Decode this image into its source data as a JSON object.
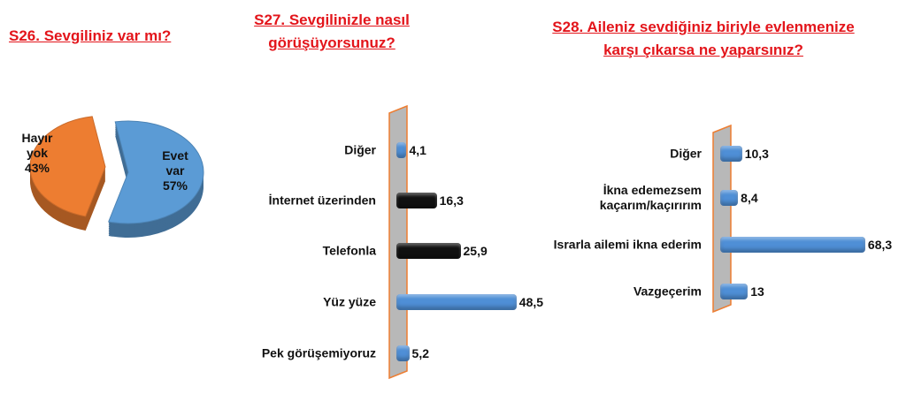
{
  "chart_data": [
    {
      "type": "pie",
      "title": "S26. Sevgiliniz var mı?",
      "categories": [
        "Evet var",
        "Hayır yok"
      ],
      "values": [
        57,
        43
      ],
      "value_labels": [
        "57%",
        "43%"
      ],
      "colors": [
        "#5b9bd5",
        "#ed7d31"
      ]
    },
    {
      "type": "hbar",
      "title": "S27. Sevgilinizle nasıl görüşüyorsunuz?",
      "categories": [
        "Diğer",
        "İnternet üzerinden",
        "Telefonla",
        "Yüz yüze",
        "Pek görüşemiyoruz"
      ],
      "values": [
        4.1,
        16.3,
        25.9,
        48.5,
        5.2
      ],
      "value_labels": [
        "4,1",
        "16,3",
        "25,9",
        "48,5",
        "5,2"
      ],
      "colors": [
        "#4f8fd6",
        "#111111",
        "#111111",
        "#4f8fd6",
        "#4f8fd6"
      ]
    },
    {
      "type": "hbar",
      "title": "S28. Aileniz sevdiğiniz biriyle evlenmenize karşı çıkarsa ne yaparsınız?",
      "categories": [
        "Diğer",
        "İkna edemezsem kaçarım/kaçırırım",
        "Israrla ailemi ikna ederim",
        "Vazgeçerim"
      ],
      "values": [
        10.3,
        8.4,
        68.3,
        13
      ],
      "value_labels": [
        "10,3",
        "8,4",
        "68,3",
        null
      ],
      "color": "#4f8fd6"
    }
  ]
}
